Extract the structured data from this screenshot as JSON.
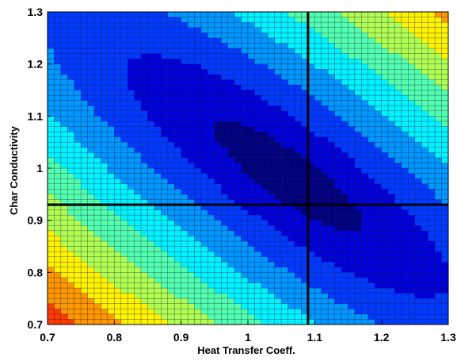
{
  "chart_data": {
    "type": "heatmap",
    "title": "",
    "xlabel": "Heat Transfer Coeff.",
    "ylabel": "Char Conductivity",
    "xlim": [
      0.7,
      1.3
    ],
    "ylim": [
      0.7,
      1.3
    ],
    "x_ticks": [
      "0.7",
      "0.8",
      "0.9",
      "1",
      "1.1",
      "1.2",
      "1.3"
    ],
    "y_ticks": [
      "0.7",
      "0.8",
      "0.9",
      "1",
      "1.1",
      "1.2",
      "1.3"
    ],
    "x_tick_values": [
      0.7,
      0.8,
      0.9,
      1.0,
      1.1,
      1.2,
      1.3
    ],
    "y_tick_values": [
      0.7,
      0.8,
      0.9,
      1.0,
      1.1,
      1.2,
      1.3
    ],
    "grid": "cell edges visible",
    "colormap": "jet",
    "color_levels": 12,
    "minimum": {
      "x": 1.09,
      "y": 0.93
    },
    "crosshair": {
      "x": 1.09,
      "y": 0.93
    },
    "field": {
      "center_x": 1.06,
      "center_y": 0.985,
      "axis_direction": [
        0.72,
        -0.69
      ],
      "major_scale": 0.2,
      "minor_scale": 0.055,
      "min_level": 0.15,
      "max_level": 11.2
    },
    "grid_resolution": 60
  }
}
